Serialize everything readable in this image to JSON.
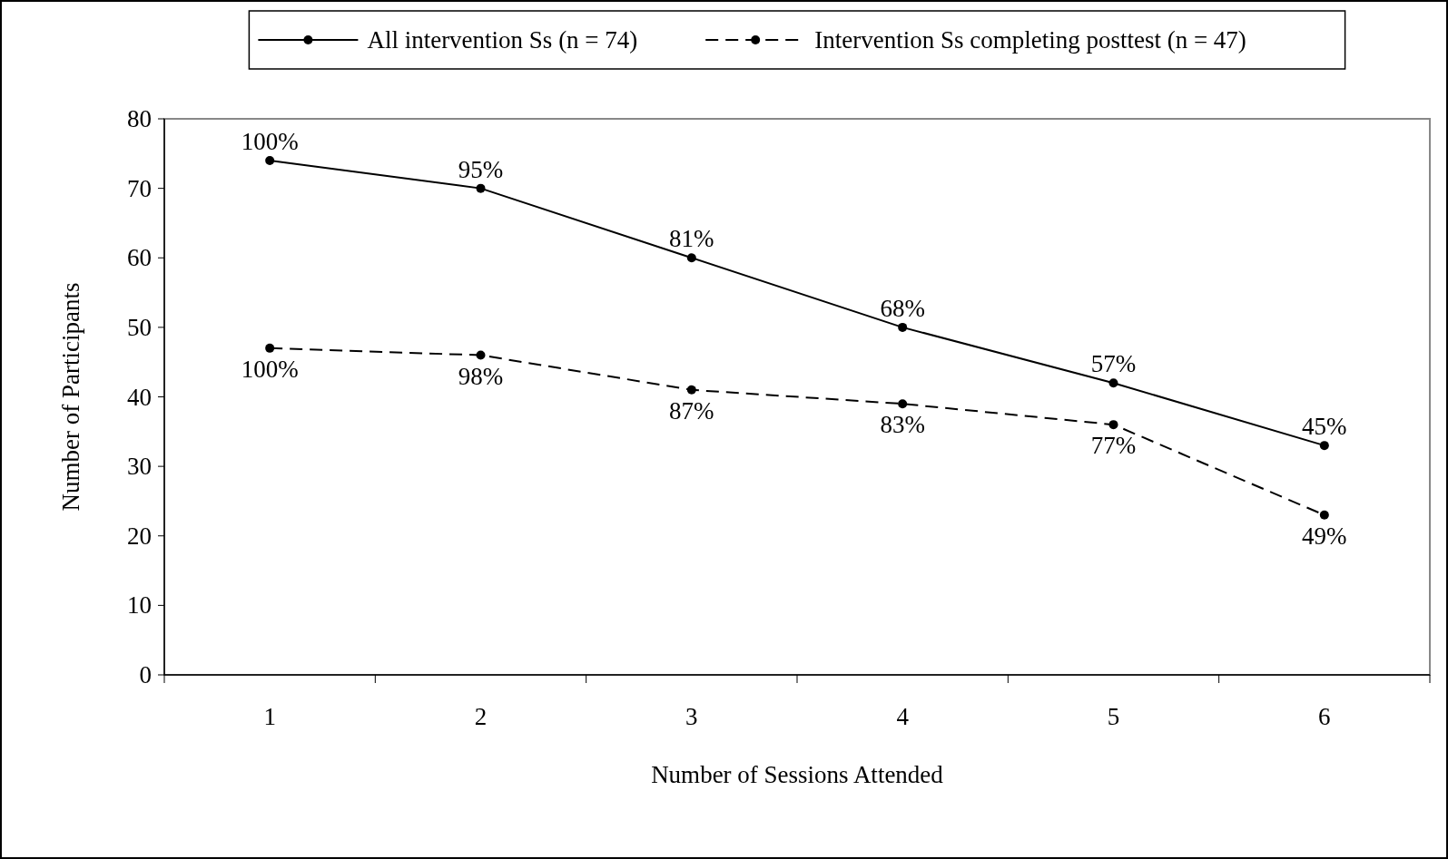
{
  "chart_data": {
    "type": "line",
    "xlabel": "Number of Sessions Attended",
    "ylabel": "Number of Participants",
    "categories": [
      "1",
      "2",
      "3",
      "4",
      "5",
      "6"
    ],
    "ylim": [
      0,
      80
    ],
    "yticks": [
      0,
      10,
      20,
      30,
      40,
      50,
      60,
      70,
      80
    ],
    "grid": false,
    "legend": "top",
    "marker": "circle",
    "series": [
      {
        "name": "All intervention Ss (n = 74)",
        "color": "#000000",
        "line_style": "solid",
        "values": [
          74,
          70,
          60,
          50,
          42,
          33
        ]
      },
      {
        "name": "Intervention Ss completing posttest (n = 47)",
        "color": "#000000",
        "line_style": "dashed",
        "values": [
          47,
          46,
          41,
          39,
          36,
          23
        ]
      }
    ],
    "annotations": [
      {
        "text": "100%",
        "x": "1",
        "y": 74
      },
      {
        "text": "95%",
        "x": "2",
        "y": 70
      },
      {
        "text": "81%",
        "x": "3",
        "y": 60
      },
      {
        "text": "68%",
        "x": "4",
        "y": 50
      },
      {
        "text": "57%",
        "x": "5",
        "y": 42
      },
      {
        "text": "45%",
        "x": "6",
        "y": 33
      },
      {
        "text": "100%",
        "x": "1",
        "y": 47
      },
      {
        "text": "98%",
        "x": "2",
        "y": 46
      },
      {
        "text": "87%",
        "x": "3",
        "y": 41
      },
      {
        "text": "83%",
        "x": "4",
        "y": 39
      },
      {
        "text": "77%",
        "x": "5",
        "y": 36
      },
      {
        "text": "49%",
        "x": "6",
        "y": 23
      }
    ]
  }
}
